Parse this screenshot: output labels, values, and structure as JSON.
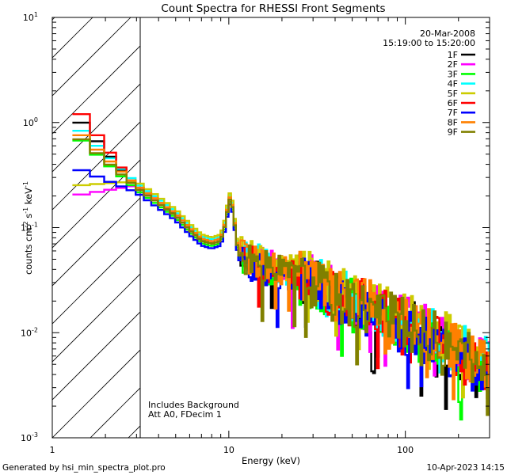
{
  "chart_data": {
    "type": "line",
    "title": "Count Spectra for RHESSI Front Segments",
    "xlabel": "Energy (keV)",
    "ylabel_parts": {
      "main": "counts cm",
      "sup1": "-2",
      "mid": " s",
      "sup2": "-1",
      "end": " keV",
      "sup3": "-1"
    },
    "xscale": "log",
    "yscale": "log",
    "xlim": [
      1,
      300
    ],
    "ylim": [
      0.001,
      10
    ],
    "x_ticks": [
      {
        "value": 1,
        "label": "1"
      },
      {
        "value": 10,
        "label": "10"
      },
      {
        "value": 100,
        "label": "100"
      }
    ],
    "y_ticks": [
      {
        "value": 0.001,
        "base": "10",
        "exp": "-3"
      },
      {
        "value": 0.01,
        "base": "10",
        "exp": "-2"
      },
      {
        "value": 0.1,
        "base": "10",
        "exp": "-1"
      },
      {
        "value": 1,
        "base": "10",
        "exp": "0"
      },
      {
        "value": 10,
        "base": "10",
        "exp": "1"
      }
    ],
    "hatched_region": {
      "x_from": 1,
      "x_to": 3
    },
    "date": "20-Mar-2008",
    "time_range": "15:19:00 to 15:20:00",
    "annotations": [
      "Includes Background",
      "Att A0, FDecim 1"
    ],
    "legend_position": "top-right",
    "series": [
      {
        "name": "1F",
        "color": "#000000",
        "scale": 1.0,
        "low": 1.25,
        "seed": 3
      },
      {
        "name": "2F",
        "color": "#ff00ff",
        "scale": 1.05,
        "low": 0.2,
        "seed": 7
      },
      {
        "name": "3F",
        "color": "#00ff00",
        "scale": 0.95,
        "low": 0.8,
        "seed": 11
      },
      {
        "name": "4F",
        "color": "#00ffff",
        "scale": 1.1,
        "low": 1.0,
        "seed": 13
      },
      {
        "name": "5F",
        "color": "#cccc00",
        "scale": 1.15,
        "low": 0.25,
        "seed": 17
      },
      {
        "name": "6F",
        "color": "#ff0000",
        "scale": 1.0,
        "low": 1.55,
        "seed": 19
      },
      {
        "name": "7F",
        "color": "#0000ff",
        "scale": 0.9,
        "low": 0.38,
        "seed": 23
      },
      {
        "name": "8F",
        "color": "#ff8000",
        "scale": 1.05,
        "low": 0.9,
        "seed": 29
      },
      {
        "name": "9F",
        "color": "#808000",
        "scale": 1.0,
        "low": 0.82,
        "seed": 31
      }
    ],
    "base_curve": [
      [
        1.3,
        0.9
      ],
      [
        1.6,
        0.7
      ],
      [
        2.0,
        0.45
      ],
      [
        2.5,
        0.32
      ],
      [
        3.0,
        0.24
      ],
      [
        4.0,
        0.17
      ],
      [
        5.0,
        0.13
      ],
      [
        6.0,
        0.095
      ],
      [
        7.0,
        0.075
      ],
      [
        8.0,
        0.07
      ],
      [
        9.0,
        0.075
      ],
      [
        9.6,
        0.11
      ],
      [
        10.0,
        0.18
      ],
      [
        10.3,
        0.19
      ],
      [
        10.7,
        0.12
      ],
      [
        11.3,
        0.055
      ],
      [
        12.5,
        0.05
      ],
      [
        15.0,
        0.045
      ],
      [
        20.0,
        0.038
      ],
      [
        30.0,
        0.03
      ],
      [
        40.0,
        0.022
      ],
      [
        60.0,
        0.018
      ],
      [
        80.0,
        0.014
      ],
      [
        100.0,
        0.012
      ],
      [
        150.0,
        0.009
      ],
      [
        200.0,
        0.0065
      ],
      [
        300.0,
        0.0045
      ]
    ]
  },
  "footer": {
    "generator": "Generated by hsi_min_spectra_plot.pro",
    "timestamp": "10-Apr-2023 14:15"
  }
}
